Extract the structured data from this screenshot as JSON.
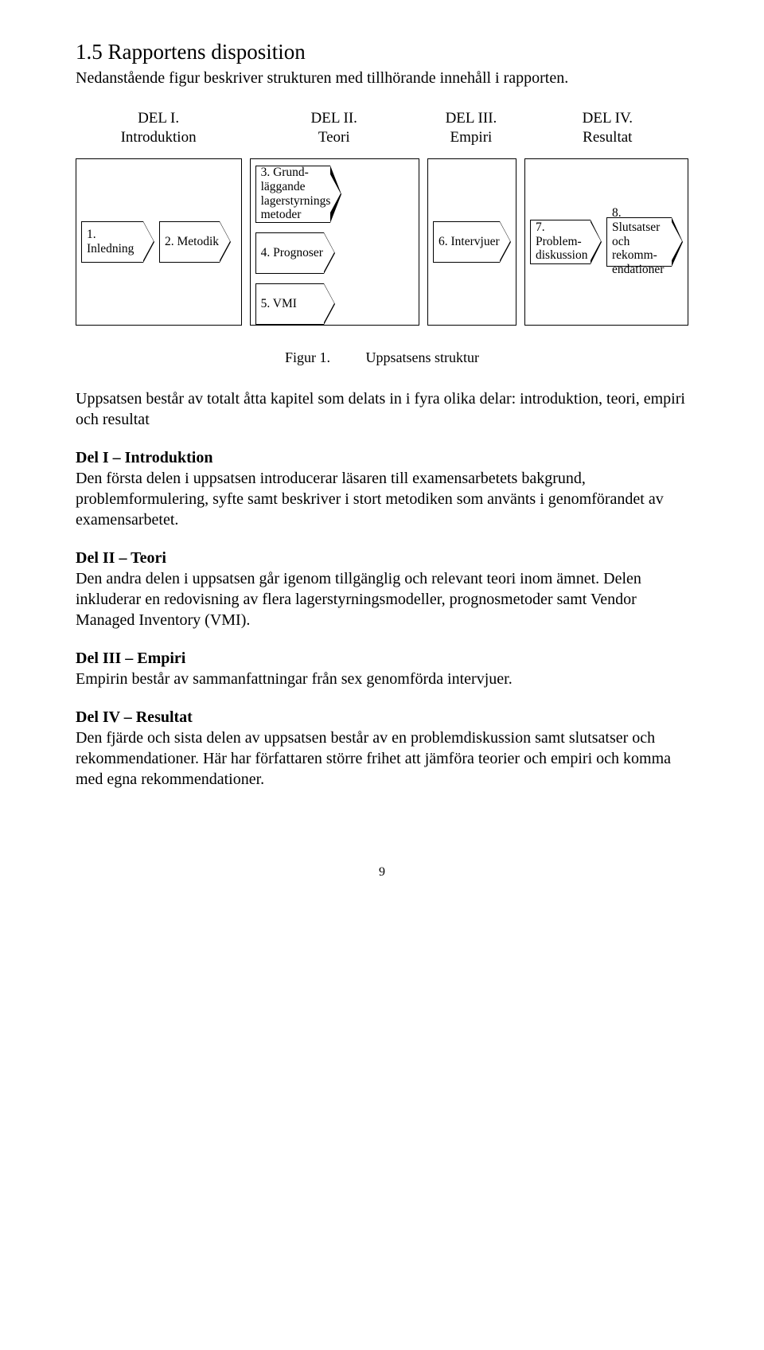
{
  "heading": "1.5 Rapportens disposition",
  "intro": "Nedanstående figur beskriver strukturen med tillhörande innehåll i rapporten.",
  "cols": {
    "c1": {
      "top": "DEL I.",
      "bottom": "Introduktion"
    },
    "c2": {
      "top": "DEL II.",
      "bottom": "Teori"
    },
    "c3": {
      "top": "DEL III.",
      "bottom": "Empiri"
    },
    "c4": {
      "top": "DEL IV.",
      "bottom": "Resultat"
    }
  },
  "boxes": {
    "b1": "1. Inledning",
    "b2": "2. Metodik",
    "b3": "3. Grund-\nläggande\nlagerstyrnings-\nmetoder",
    "b4": "4. Prognoser",
    "b5": "5. VMI",
    "b6": "6. Intervjuer",
    "b7": "7. Problem-\ndiskussion",
    "b8": "8. Slutsatser\noch rekomm-\nendationer"
  },
  "figcaption": {
    "label": "Figur 1.",
    "text": "Uppsatsens struktur"
  },
  "para1": "Uppsatsen består av totalt åtta kapitel som delats in i fyra olika delar: introduktion, teori, empiri och resultat",
  "sec1": {
    "title": "Del I – Introduktion",
    "text": "Den första delen i uppsatsen introducerar läsaren till examensarbetets bakgrund, problemformulering, syfte samt beskriver i stort metodiken som använts i genomförandet av examensarbetet."
  },
  "sec2": {
    "title": "Del II – Teori",
    "text": "Den andra delen i uppsatsen går igenom tillgänglig och relevant teori inom ämnet. Delen inkluderar en redovisning av flera lagerstyrningsmodeller, prognosmetoder samt Vendor Managed Inventory (VMI)."
  },
  "sec3": {
    "title": "Del III – Empiri",
    "text": "Empirin består av sammanfattningar från sex genomförda intervjuer."
  },
  "sec4": {
    "title": "Del IV – Resultat",
    "text": "Den fjärde och sista delen av uppsatsen består av en problemdiskussion samt slutsatser och rekommendationer. Här har författaren större frihet att jämföra teorier och empiri och komma med egna rekommendationer."
  },
  "pagenum": "9"
}
